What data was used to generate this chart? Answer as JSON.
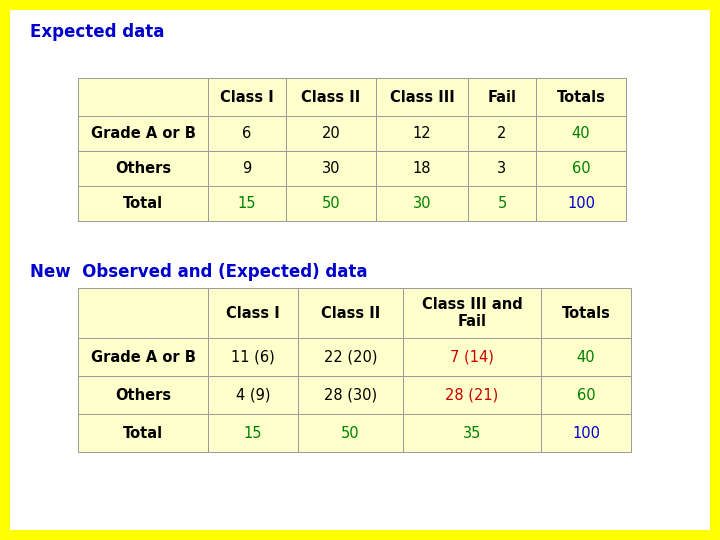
{
  "title1": "Expected data",
  "title2": "New  Observed and (Expected) data",
  "bg_outer": "#FFFF00",
  "bg_inner": "#FFFFFF",
  "title1_color": "#0000CC",
  "title2_color": "#0000CC",
  "table1": {
    "headers": [
      "",
      "Class I",
      "Class II",
      "Class III",
      "Fail",
      "Totals"
    ],
    "rows": [
      {
        "label": "Grade A or B",
        "values": [
          "6",
          "20",
          "12",
          "2",
          "40"
        ]
      },
      {
        "label": "Others",
        "values": [
          "9",
          "30",
          "18",
          "3",
          "60"
        ]
      },
      {
        "label": "Total",
        "values": [
          "15",
          "50",
          "30",
          "5",
          "100"
        ]
      }
    ],
    "cell_bg": "#FFFFCC"
  },
  "table2": {
    "headers": [
      "",
      "Class I",
      "Class II",
      "Class III and\nFail",
      "Totals"
    ],
    "rows": [
      {
        "label": "Grade A or B",
        "values": [
          "11 (6)",
          "22 (20)",
          "7 (14)",
          "40"
        ]
      },
      {
        "label": "Others",
        "values": [
          "4 (9)",
          "28 (30)",
          "28 (21)",
          "60"
        ]
      },
      {
        "label": "Total",
        "values": [
          "15",
          "50",
          "35",
          "100"
        ]
      }
    ],
    "cell_bg": "#FFFFCC"
  },
  "t1_special_colors": {
    "1,5": "#008000",
    "2,5": "#008000",
    "3,1": "#008000",
    "3,2": "#008000",
    "3,3": "#008000",
    "3,4": "#008000",
    "3,5": "#0000CC"
  },
  "t2_special_colors": {
    "1,3": "#CC0000",
    "2,3": "#CC0000",
    "3,3": "#008000",
    "1,4": "#008000",
    "2,4": "#008000",
    "3,4": "#0000CC",
    "3,1": "#008000",
    "3,2": "#008000"
  }
}
